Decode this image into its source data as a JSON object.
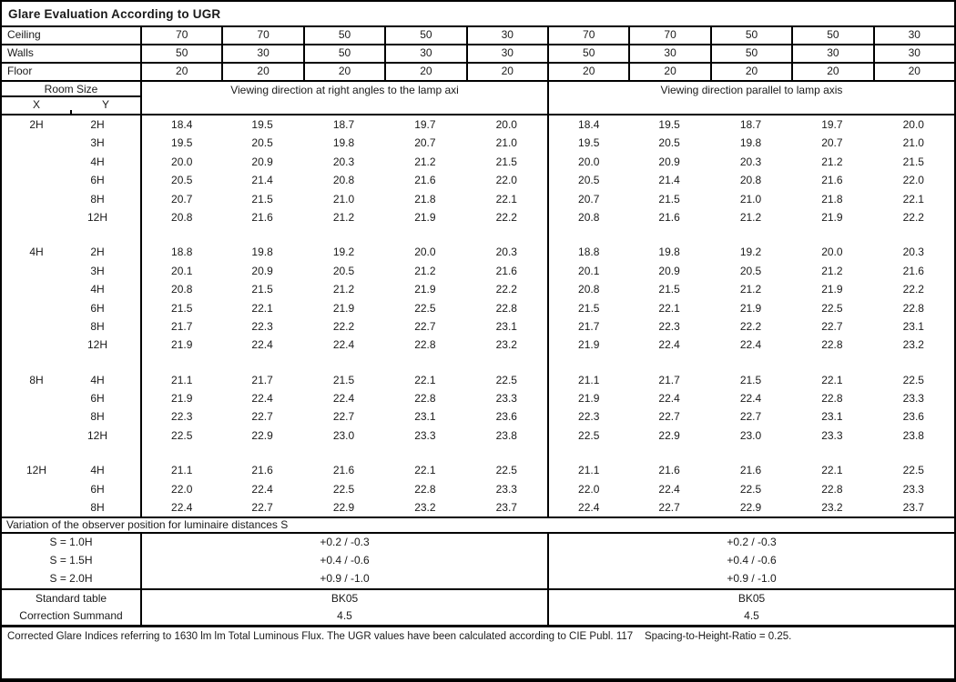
{
  "title": "Glare Evaluation According to UGR",
  "surface_rows": [
    {
      "label": "Ceiling",
      "values": [
        "70",
        "70",
        "50",
        "50",
        "30",
        "70",
        "70",
        "50",
        "50",
        "30"
      ]
    },
    {
      "label": "Walls",
      "values": [
        "50",
        "30",
        "50",
        "30",
        "30",
        "50",
        "30",
        "50",
        "30",
        "30"
      ]
    },
    {
      "label": "Floor",
      "values": [
        "20",
        "20",
        "20",
        "20",
        "20",
        "20",
        "20",
        "20",
        "20",
        "20"
      ]
    }
  ],
  "header": {
    "room_size": "Room Size",
    "x": "X",
    "y": "Y",
    "left_heading": "Viewing direction at right angles to the lamp axi",
    "right_heading": "Viewing direction parallel to lamp axis"
  },
  "groups": [
    {
      "x": "2H",
      "rows": [
        {
          "y": "2H",
          "left": [
            "18.4",
            "19.5",
            "18.7",
            "19.7",
            "20.0"
          ],
          "right": [
            "18.4",
            "19.5",
            "18.7",
            "19.7",
            "20.0"
          ]
        },
        {
          "y": "3H",
          "left": [
            "19.5",
            "20.5",
            "19.8",
            "20.7",
            "21.0"
          ],
          "right": [
            "19.5",
            "20.5",
            "19.8",
            "20.7",
            "21.0"
          ]
        },
        {
          "y": "4H",
          "left": [
            "20.0",
            "20.9",
            "20.3",
            "21.2",
            "21.5"
          ],
          "right": [
            "20.0",
            "20.9",
            "20.3",
            "21.2",
            "21.5"
          ]
        },
        {
          "y": "6H",
          "left": [
            "20.5",
            "21.4",
            "20.8",
            "21.6",
            "22.0"
          ],
          "right": [
            "20.5",
            "21.4",
            "20.8",
            "21.6",
            "22.0"
          ]
        },
        {
          "y": "8H",
          "left": [
            "20.7",
            "21.5",
            "21.0",
            "21.8",
            "22.1"
          ],
          "right": [
            "20.7",
            "21.5",
            "21.0",
            "21.8",
            "22.1"
          ]
        },
        {
          "y": "12H",
          "left": [
            "20.8",
            "21.6",
            "21.2",
            "21.9",
            "22.2"
          ],
          "right": [
            "20.8",
            "21.6",
            "21.2",
            "21.9",
            "22.2"
          ]
        }
      ]
    },
    {
      "x": "4H",
      "rows": [
        {
          "y": "2H",
          "left": [
            "18.8",
            "19.8",
            "19.2",
            "20.0",
            "20.3"
          ],
          "right": [
            "18.8",
            "19.8",
            "19.2",
            "20.0",
            "20.3"
          ]
        },
        {
          "y": "3H",
          "left": [
            "20.1",
            "20.9",
            "20.5",
            "21.2",
            "21.6"
          ],
          "right": [
            "20.1",
            "20.9",
            "20.5",
            "21.2",
            "21.6"
          ]
        },
        {
          "y": "4H",
          "left": [
            "20.8",
            "21.5",
            "21.2",
            "21.9",
            "22.2"
          ],
          "right": [
            "20.8",
            "21.5",
            "21.2",
            "21.9",
            "22.2"
          ]
        },
        {
          "y": "6H",
          "left": [
            "21.5",
            "22.1",
            "21.9",
            "22.5",
            "22.8"
          ],
          "right": [
            "21.5",
            "22.1",
            "21.9",
            "22.5",
            "22.8"
          ]
        },
        {
          "y": "8H",
          "left": [
            "21.7",
            "22.3",
            "22.2",
            "22.7",
            "23.1"
          ],
          "right": [
            "21.7",
            "22.3",
            "22.2",
            "22.7",
            "23.1"
          ]
        },
        {
          "y": "12H",
          "left": [
            "21.9",
            "22.4",
            "22.4",
            "22.8",
            "23.2"
          ],
          "right": [
            "21.9",
            "22.4",
            "22.4",
            "22.8",
            "23.2"
          ]
        }
      ]
    },
    {
      "x": "8H",
      "rows": [
        {
          "y": "4H",
          "left": [
            "21.1",
            "21.7",
            "21.5",
            "22.1",
            "22.5"
          ],
          "right": [
            "21.1",
            "21.7",
            "21.5",
            "22.1",
            "22.5"
          ]
        },
        {
          "y": "6H",
          "left": [
            "21.9",
            "22.4",
            "22.4",
            "22.8",
            "23.3"
          ],
          "right": [
            "21.9",
            "22.4",
            "22.4",
            "22.8",
            "23.3"
          ]
        },
        {
          "y": "8H",
          "left": [
            "22.3",
            "22.7",
            "22.7",
            "23.1",
            "23.6"
          ],
          "right": [
            "22.3",
            "22.7",
            "22.7",
            "23.1",
            "23.6"
          ]
        },
        {
          "y": "12H",
          "left": [
            "22.5",
            "22.9",
            "23.0",
            "23.3",
            "23.8"
          ],
          "right": [
            "22.5",
            "22.9",
            "23.0",
            "23.3",
            "23.8"
          ]
        }
      ]
    },
    {
      "x": "12H",
      "rows": [
        {
          "y": "4H",
          "left": [
            "21.1",
            "21.6",
            "21.6",
            "22.1",
            "22.5"
          ],
          "right": [
            "21.1",
            "21.6",
            "21.6",
            "22.1",
            "22.5"
          ]
        },
        {
          "y": "6H",
          "left": [
            "22.0",
            "22.4",
            "22.5",
            "22.8",
            "23.3"
          ],
          "right": [
            "22.0",
            "22.4",
            "22.5",
            "22.8",
            "23.3"
          ]
        },
        {
          "y": "8H",
          "left": [
            "22.4",
            "22.7",
            "22.9",
            "23.2",
            "23.7"
          ],
          "right": [
            "22.4",
            "22.7",
            "22.9",
            "23.2",
            "23.7"
          ]
        }
      ]
    }
  ],
  "variation": {
    "title": "Variation of the observer position for luminaire distances S",
    "rows": [
      {
        "label": "S = 1.0H",
        "left": "+0.2 / -0.3",
        "right": "+0.2 / -0.3"
      },
      {
        "label": "S = 1.5H",
        "left": "+0.4 / -0.6",
        "right": "+0.4 / -0.6"
      },
      {
        "label": "S = 2.0H",
        "left": "+0.9 / -1.0",
        "right": "+0.9 / -1.0"
      }
    ]
  },
  "summary": {
    "rows": [
      {
        "label": "Standard table",
        "left": "BK05",
        "right": "BK05"
      },
      {
        "label": "Correction Summand",
        "left": "4.5",
        "right": "4.5"
      }
    ]
  },
  "footer": "Corrected Glare Indices referring to 1630 lm lm Total Luminous Flux. The UGR values have been calculated according to CIE Publ. 117    Spacing-to-Height-Ratio = 0.25."
}
